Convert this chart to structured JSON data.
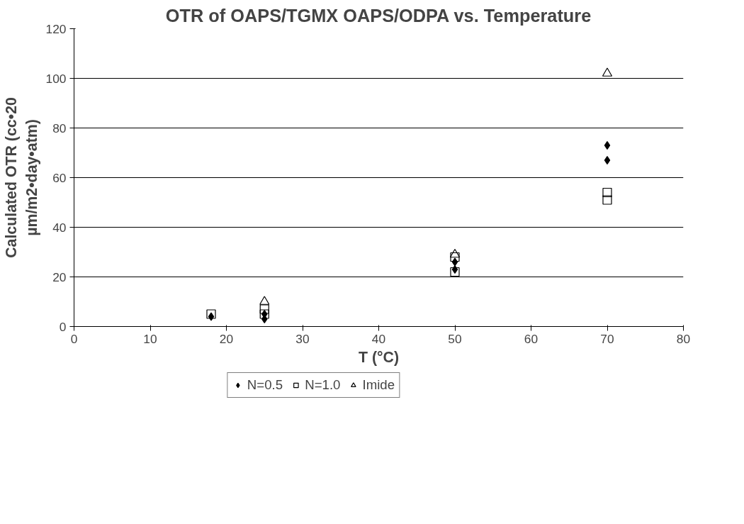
{
  "chart_data": {
    "type": "scatter",
    "title": "OTR of OAPS/TGMX OAPS/ODPA vs. Temperature",
    "xlabel": "T (°C)",
    "ylabel": "Calculated OTR (cc•20 µm/m2•day•atm)",
    "xlim": [
      0,
      80
    ],
    "xticks": [
      0,
      10,
      20,
      30,
      40,
      50,
      60,
      70,
      80
    ],
    "ylim": [
      0,
      120
    ],
    "yticks": [
      0,
      20,
      40,
      60,
      80,
      100,
      120
    ],
    "grid": "y",
    "legend": "bottom",
    "series": [
      {
        "name": "N=0.5",
        "color": "#000000",
        "marker": "diamond",
        "x": [
          18,
          25,
          25,
          50,
          50,
          70,
          70
        ],
        "values": [
          4,
          3,
          5,
          23,
          26,
          67,
          73
        ]
      },
      {
        "name": "N=1.0",
        "color": "#000000",
        "marker": "square",
        "x": [
          18,
          25,
          25,
          50,
          50,
          70,
          70
        ],
        "values": [
          5,
          5,
          7,
          22,
          28,
          51,
          54
        ]
      },
      {
        "name": "Imide",
        "color": "#000000",
        "marker": "triangle",
        "x": [
          25,
          50,
          70
        ],
        "values": [
          10,
          29,
          102
        ]
      }
    ]
  }
}
